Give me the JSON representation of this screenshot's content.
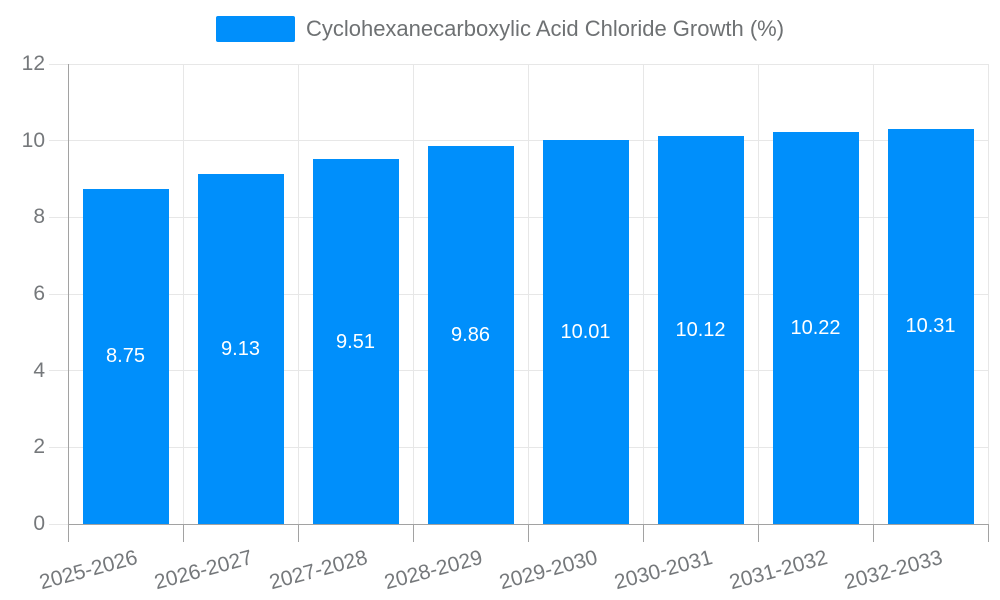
{
  "chart_data": {
    "type": "bar",
    "title": "Cyclohexanecarboxylic Acid Chloride Growth (%)",
    "legend_position": "top",
    "grid": true,
    "categories": [
      "2025-2026",
      "2026-2027",
      "2027-2028",
      "2028-2029",
      "2029-2030",
      "2030-2031",
      "2031-2032",
      "2032-2033"
    ],
    "series": [
      {
        "name": "Cyclohexanecarboxylic Acid Chloride Growth (%)",
        "values": [
          8.75,
          9.13,
          9.51,
          9.86,
          10.01,
          10.12,
          10.22,
          10.31
        ],
        "value_labels": [
          "8.75",
          "9.13",
          "9.51",
          "9.86",
          "10.01",
          "10.12",
          "10.22",
          "10.31"
        ]
      }
    ],
    "xlabel": "",
    "ylabel": "",
    "ylim": [
      0,
      12
    ],
    "yticks": [
      0,
      2,
      4,
      6,
      8,
      10,
      12
    ],
    "x_label_rotation_deg": -15,
    "colors": {
      "bar": "#008FFB",
      "value_label": "#ffffff",
      "grid": "#e7e7e7",
      "axis": "#a2a2a2",
      "tick_label": "#75787b",
      "legend_text": "#6e7173",
      "background": "#ffffff"
    }
  }
}
